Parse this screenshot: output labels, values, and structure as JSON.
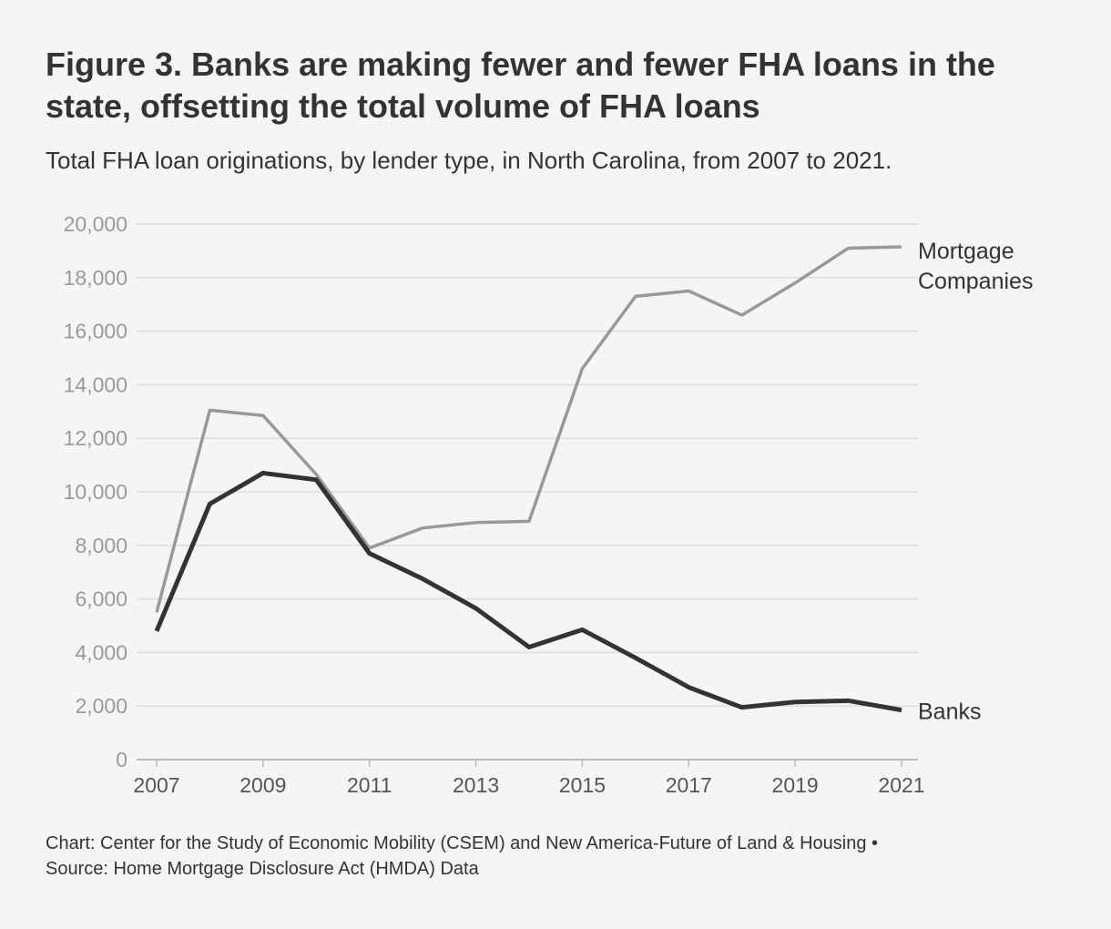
{
  "header": {
    "title": "Figure 3. Banks are making fewer and fewer FHA loans in the state, offsetting the total volume of FHA loans",
    "subtitle": "Total FHA loan originations, by lender type, in North Carolina, from 2007 to 2021."
  },
  "footer": {
    "line1": "Chart: Center for the Study of Economic Mobility (CSEM) and New America-Future of Land & Housing •",
    "line2": "Source: Home Mortgage Disclosure Act (HMDA) Data"
  },
  "chart_data": {
    "type": "line",
    "title": "Figure 3. Banks are making fewer and fewer FHA loans in the state, offsetting the total volume of FHA loans",
    "subtitle": "Total FHA loan originations, by lender type, in North Carolina, from 2007 to 2021.",
    "x": [
      2007,
      2008,
      2009,
      2010,
      2011,
      2012,
      2013,
      2014,
      2015,
      2016,
      2017,
      2018,
      2019,
      2020,
      2021
    ],
    "xlim": [
      2007,
      2021
    ],
    "ylim": [
      0,
      20000
    ],
    "x_ticks": [
      "2007",
      "2009",
      "2011",
      "2013",
      "2015",
      "2017",
      "2019",
      "2021"
    ],
    "y_ticks": [
      "0",
      "2,000",
      "4,000",
      "6,000",
      "8,000",
      "10,000",
      "12,000",
      "14,000",
      "16,000",
      "18,000",
      "20,000"
    ],
    "grid": "horizontal",
    "legend": "direct labels at right end of lines",
    "series": [
      {
        "name": "Mortgage Companies",
        "label_lines": [
          "Mortgage",
          "Companies"
        ],
        "color": "#999999",
        "values": [
          5500,
          13050,
          12850,
          10650,
          7900,
          8650,
          8850,
          8900,
          14600,
          17300,
          17500,
          16600,
          17800,
          19100,
          19150
        ]
      },
      {
        "name": "Banks",
        "label_lines": [
          "Banks"
        ],
        "color": "#333333",
        "values": [
          4800,
          9550,
          10700,
          10450,
          7700,
          6750,
          5650,
          4200,
          4850,
          3800,
          2700,
          1950,
          2150,
          2200,
          1850
        ]
      }
    ]
  },
  "colors": {
    "background": "#f5f5f5",
    "gridline": "#dddddd",
    "axis": "#bbbbbb",
    "text": "#333333",
    "tick_text": "#9a9a9a"
  }
}
